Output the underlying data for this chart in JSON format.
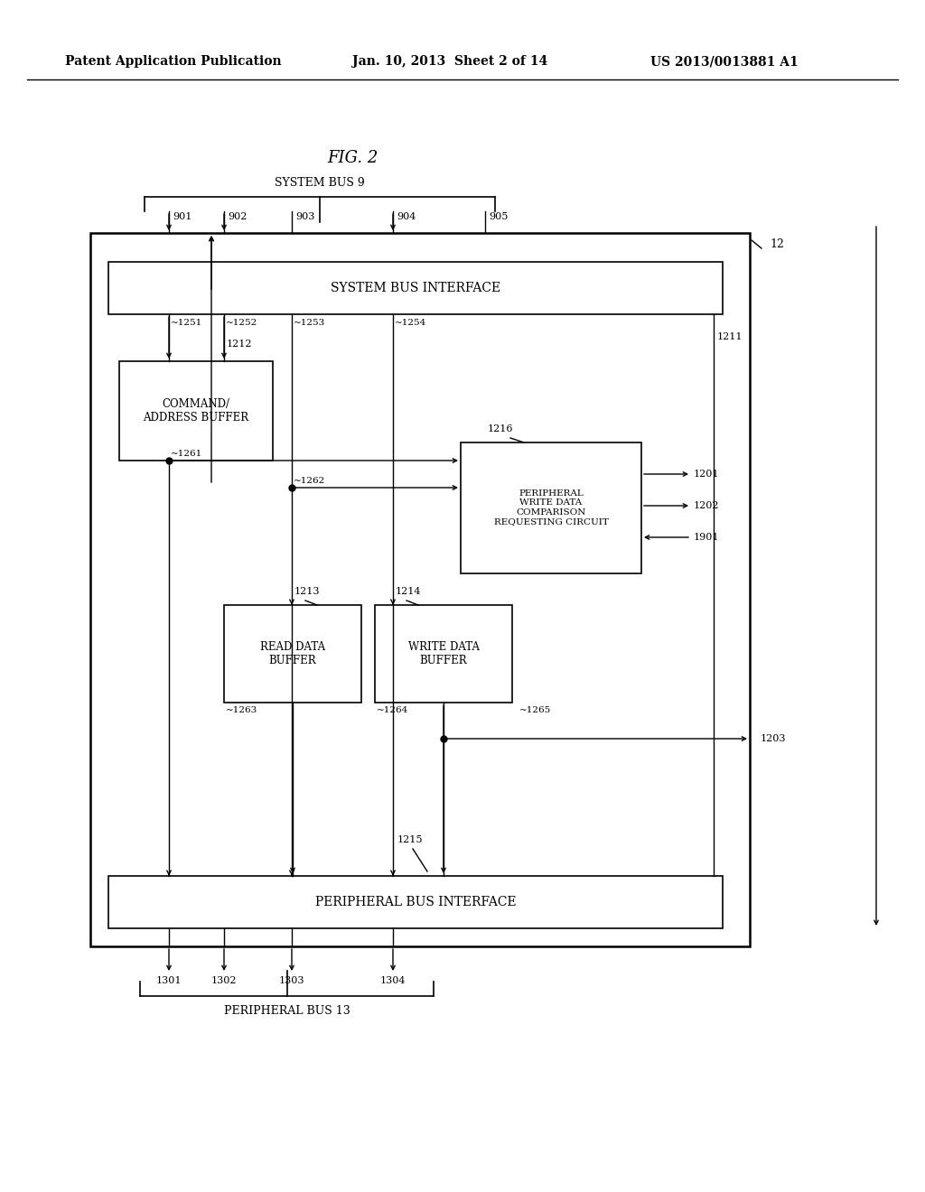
{
  "bg_color": "#ffffff",
  "header_left": "Patent Application Publication",
  "header_mid": "Jan. 10, 2013  Sheet 2 of 14",
  "header_right": "US 2013/0013881 A1",
  "fig_title": "FIG. 2",
  "system_bus_label": "SYSTEM BUS 9",
  "peripheral_bus_label": "PERIPHERAL BUS 13",
  "sys_bus_iface_label": "SYSTEM BUS INTERFACE",
  "peri_bus_iface_label": "PERIPHERAL BUS INTERFACE",
  "cmd_addr_buf_label": "COMMAND/\nADDRESS BUFFER",
  "read_data_buf_label": "READ DATA\nBUFFER",
  "write_data_buf_label": "WRITE DATA\nBUFFER",
  "peri_write_label": "PERIPHERAL\nWRITE DATA\nCOMPARISON\nREQUESTING CIRCUIT",
  "label_1201": "1201",
  "label_1202": "1202",
  "label_1901": "1901",
  "label_1203": "1203",
  "label_12": "12",
  "label_1211": "1211",
  "label_1212": "1212",
  "label_1213": "1213",
  "label_1214": "1214",
  "label_1215": "1215",
  "label_1216": "1216",
  "label_1251": "~1251",
  "label_1252": "~1252",
  "label_1253": "~1253",
  "label_1254": "~1254",
  "label_1261": "~1261",
  "label_1262": "~1262",
  "label_1263": "~1263",
  "label_1264": "~1264",
  "label_1265": "~1265",
  "label_901": "901",
  "label_902": "902",
  "label_903": "903",
  "label_904": "904",
  "label_905": "905",
  "label_1301": "1301",
  "label_1302": "1302",
  "label_1303": "1303",
  "label_1304": "1304"
}
